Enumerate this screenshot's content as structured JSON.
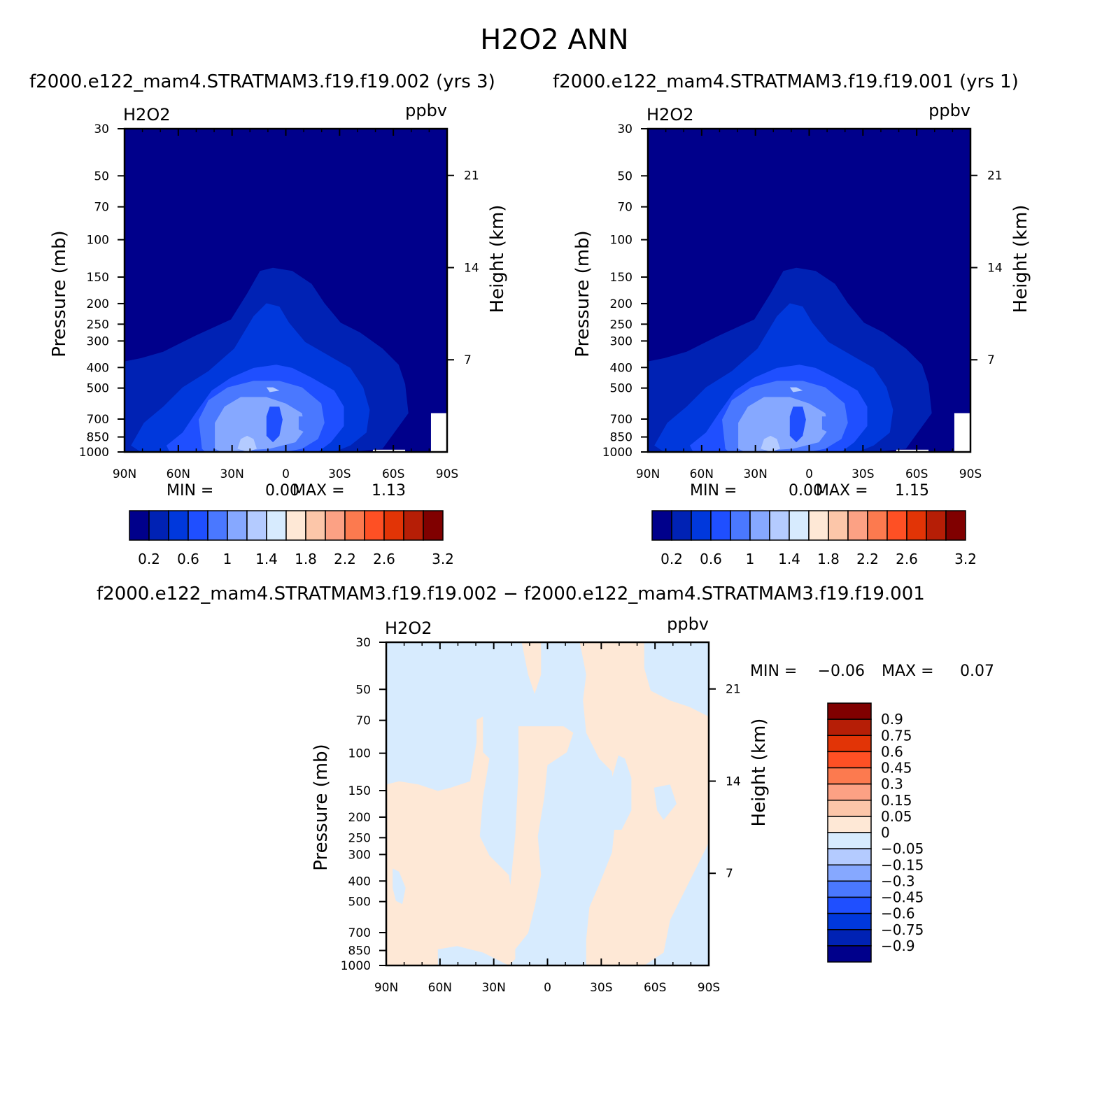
{
  "main_title": "H2O2 ANN",
  "panels": {
    "top_left": {
      "header": "f2000.e122_mam4.STRATMAM3.f19.f19.002 (yrs 3)",
      "var_label": "H2O2",
      "units": "ppbv",
      "min_label": "MIN =",
      "min_value": "0.00",
      "max_label": "MAX =",
      "max_value": "1.13"
    },
    "top_right": {
      "header": "f2000.e122_mam4.STRATMAM3.f19.f19.001 (yrs 1)",
      "var_label": "H2O2",
      "units": "ppbv",
      "min_label": "MIN =",
      "min_value": "0.00",
      "max_label": "MAX =",
      "max_value": "1.15"
    },
    "bottom": {
      "header": "f2000.e122_mam4.STRATMAM3.f19.f19.002 − f2000.e122_mam4.STRATMAM3.f19.f19.001",
      "var_label": "H2O2",
      "units": "ppbv",
      "min_label": "MIN =",
      "min_value": "−0.06",
      "max_label": "MAX =",
      "max_value": "0.07"
    }
  },
  "axis_labels": {
    "y_left": "Pressure (mb)",
    "y_right": "Height (km)"
  },
  "colors": {
    "abs_scale": [
      "#00008b",
      "#0022b4",
      "#0038dc",
      "#1f4fff",
      "#4a78ff",
      "#86a8ff",
      "#b4cbff",
      "#d7ebfe",
      "#fee8d6",
      "#fcc6a9",
      "#fca184",
      "#fc7a4f",
      "#fe5024",
      "#e23406",
      "#b61e06",
      "#800000"
    ],
    "diff_scale": [
      "#00008b",
      "#0022b4",
      "#0038dc",
      "#1f4fff",
      "#4a78ff",
      "#86a8ff",
      "#b4cbff",
      "#d7ebfe",
      "#fee8d6",
      "#fcc6a9",
      "#fca184",
      "#fc7a4f",
      "#fe5024",
      "#e23406",
      "#b61e06",
      "#800000"
    ]
  },
  "chart_data": [
    {
      "type": "contour",
      "panel": "top_left",
      "x_ticks": [
        "90N",
        "60N",
        "30N",
        "0",
        "30S",
        "60S",
        "90S"
      ],
      "y_ticks": [
        "30",
        "50",
        "70",
        "100",
        "150",
        "200",
        "250",
        "300",
        "400",
        "500",
        "700",
        "850",
        "1000"
      ],
      "y_right_ticks": [
        "21",
        "14",
        "7"
      ],
      "ylim": [
        1000,
        30
      ],
      "y_scale": "log",
      "levels": [
        0.2,
        0.4,
        0.6,
        0.8,
        1.0,
        1.2,
        1.4,
        1.6,
        1.8,
        2.0,
        2.2,
        2.4,
        2.6,
        2.8,
        3.0,
        3.2
      ],
      "colorbar_labels": [
        "0.2",
        "0.6",
        "1",
        "1.4",
        "1.8",
        "2.2",
        "2.6",
        "3.2"
      ],
      "min": 0.0,
      "max": 1.13
    },
    {
      "type": "contour",
      "panel": "top_right",
      "x_ticks": [
        "90N",
        "60N",
        "30N",
        "0",
        "30S",
        "60S",
        "90S"
      ],
      "y_ticks": [
        "30",
        "50",
        "70",
        "100",
        "150",
        "200",
        "250",
        "300",
        "400",
        "500",
        "700",
        "850",
        "1000"
      ],
      "y_right_ticks": [
        "21",
        "14",
        "7"
      ],
      "ylim": [
        1000,
        30
      ],
      "y_scale": "log",
      "levels": [
        0.2,
        0.4,
        0.6,
        0.8,
        1.0,
        1.2,
        1.4,
        1.6,
        1.8,
        2.0,
        2.2,
        2.4,
        2.6,
        2.8,
        3.0,
        3.2
      ],
      "colorbar_labels": [
        "0.2",
        "0.6",
        "1",
        "1.4",
        "1.8",
        "2.2",
        "2.6",
        "3.2"
      ],
      "min": 0.0,
      "max": 1.15
    },
    {
      "type": "contour",
      "panel": "bottom",
      "x_ticks": [
        "90N",
        "60N",
        "30N",
        "0",
        "30S",
        "60S",
        "90S"
      ],
      "y_ticks": [
        "30",
        "50",
        "70",
        "100",
        "150",
        "200",
        "250",
        "300",
        "400",
        "500",
        "700",
        "850",
        "1000"
      ],
      "y_right_ticks": [
        "21",
        "14",
        "7"
      ],
      "ylim": [
        1000,
        30
      ],
      "y_scale": "log",
      "levels": [
        -0.9,
        -0.75,
        -0.6,
        -0.45,
        -0.3,
        -0.15,
        -0.05,
        0,
        0.05,
        0.15,
        0.3,
        0.45,
        0.6,
        0.75,
        0.9
      ],
      "colorbar_labels": [
        "0.9",
        "0.75",
        "0.6",
        "0.45",
        "0.3",
        "0.15",
        "0.05",
        "0",
        "−0.05",
        "−0.15",
        "−0.3",
        "−0.45",
        "−0.6",
        "−0.75",
        "−0.9"
      ],
      "min": -0.06,
      "max": 0.07
    }
  ]
}
